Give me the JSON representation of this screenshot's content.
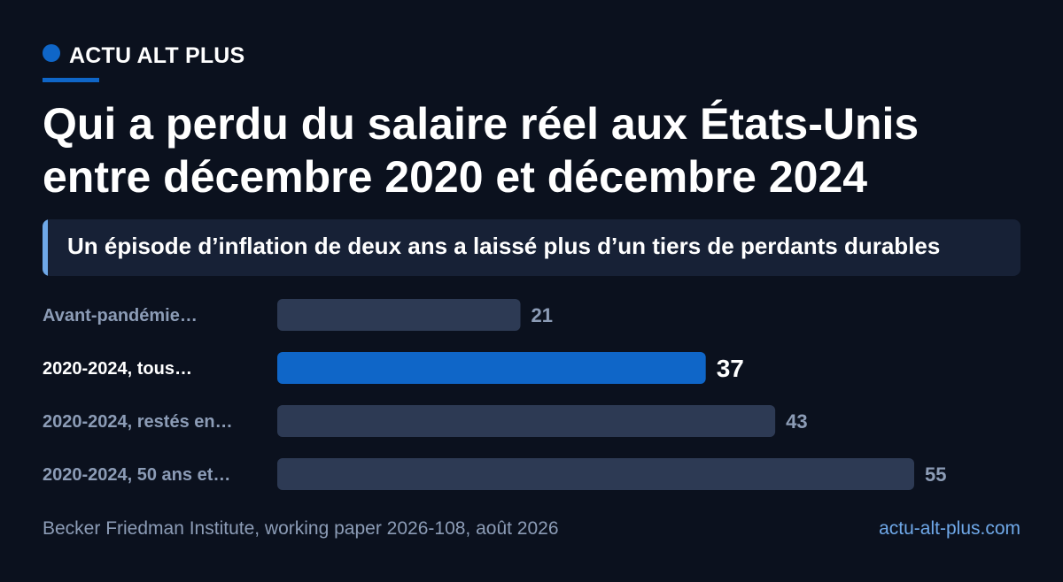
{
  "brand": {
    "name": "ACTU ALT PLUS"
  },
  "title": "Qui a perdu du salaire réel aux États-Unis entre décembre 2020 et décembre 2024",
  "subtitle": "Un épisode d’inflation de deux ans a laissé plus d’un tiers de perdants durables",
  "chart_data": {
    "type": "bar",
    "orientation": "horizontal",
    "categories": [
      "Avant-pandémie…",
      "2020-2024, tous…",
      "2020-2024, restés en…",
      "2020-2024, 50 ans et…"
    ],
    "values": [
      21,
      37,
      43,
      55
    ],
    "highlight_index": 1,
    "title": "Qui a perdu du salaire réel aux États-Unis entre décembre 2020 et décembre 2024",
    "subtitle": "Un épisode d’inflation de deux ans a laissé plus d’un tiers de perdants durables",
    "xlim": [
      0,
      60
    ],
    "grid": false,
    "colors": {
      "default": "#2d3a54",
      "highlight": "#0f66c8"
    }
  },
  "footer": {
    "source": "Becker Friedman Institute, working paper 2026-108, août 2026",
    "url": "actu-alt-plus.com"
  },
  "colors": {
    "background": "#0b111e",
    "accent": "#0f66c8",
    "subtitle_bg": "#172136",
    "subtitle_accent": "#6fa8e8",
    "muted_text": "#8c9cb6"
  }
}
